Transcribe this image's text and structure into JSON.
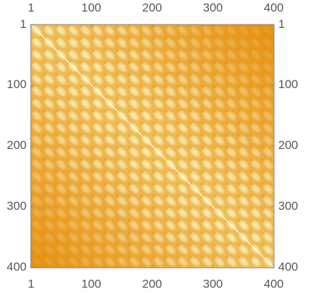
{
  "chart_data": {
    "type": "matrix",
    "xlim": [
      0.5,
      400.5
    ],
    "ylim": [
      0.5,
      400.5
    ],
    "xticks": [
      1,
      100,
      200,
      300,
      400
    ],
    "yticks": [
      1,
      100,
      200,
      300,
      400
    ],
    "color_range": [
      "#e48a06",
      "#f5e09a"
    ]
  }
}
